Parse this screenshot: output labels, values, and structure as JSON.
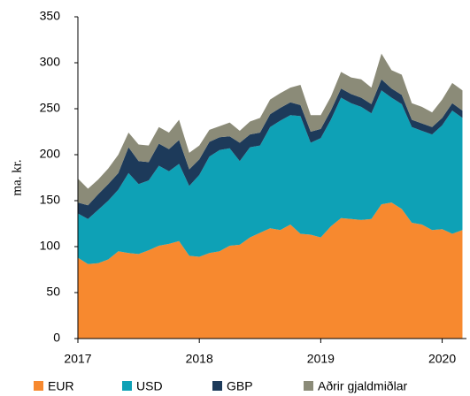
{
  "chart_data": {
    "type": "stacked_area",
    "y_label": "ma. kr.",
    "x": [
      2017,
      2017.083,
      2017.167,
      2017.25,
      2017.333,
      2017.417,
      2017.5,
      2017.583,
      2017.667,
      2017.75,
      2017.833,
      2017.917,
      2018,
      2018.083,
      2018.167,
      2018.25,
      2018.333,
      2018.417,
      2018.5,
      2018.583,
      2018.667,
      2018.75,
      2018.833,
      2018.917,
      2019,
      2019.083,
      2019.167,
      2019.25,
      2019.333,
      2019.417,
      2019.5,
      2019.583,
      2019.667,
      2019.75,
      2019.833,
      2019.917,
      2020,
      2020.083,
      2020.167
    ],
    "series": [
      {
        "name": "EUR",
        "color": "#f7892f",
        "values": [
          88,
          81,
          82,
          86,
          95,
          93,
          92,
          96,
          101,
          103,
          106,
          90,
          89,
          93,
          95,
          101,
          102,
          110,
          115,
          120,
          118,
          124,
          114,
          113,
          110,
          122,
          131,
          130,
          129,
          130,
          146,
          148,
          141,
          126,
          124,
          118,
          119,
          114,
          118
        ]
      },
      {
        "name": "USD",
        "color": "#0ea1b6",
        "values": [
          48,
          49,
          58,
          64,
          67,
          87,
          76,
          76,
          87,
          79,
          84,
          76,
          89,
          105,
          110,
          106,
          91,
          98,
          95,
          110,
          119,
          119,
          128,
          100,
          108,
          116,
          131,
          126,
          123,
          115,
          124,
          114,
          114,
          104,
          102,
          104,
          113,
          134,
          122
        ]
      },
      {
        "name": "GBP",
        "color": "#1d3a5a",
        "values": [
          12,
          15,
          17,
          18,
          18,
          28,
          25,
          20,
          24,
          24,
          26,
          18,
          17,
          16,
          14,
          13,
          20,
          14,
          14,
          14,
          14,
          14,
          12,
          12,
          10,
          10,
          10,
          10,
          10,
          10,
          12,
          10,
          10,
          8,
          8,
          8,
          8,
          8,
          8
        ]
      },
      {
        "name": "Aðrir gjaldmiðlar",
        "color": "#8b8b78",
        "values": [
          26,
          18,
          16,
          17,
          20,
          16,
          18,
          18,
          18,
          18,
          22,
          18,
          15,
          13,
          12,
          15,
          13,
          14,
          16,
          16,
          16,
          16,
          22,
          18,
          15,
          15,
          18,
          18,
          20,
          18,
          28,
          20,
          22,
          18,
          18,
          16,
          20,
          22,
          22
        ]
      }
    ],
    "xlim": [
      2017,
      2020.2
    ],
    "xticks": [
      2017,
      2018,
      2019,
      2020
    ],
    "ylim": [
      0,
      350
    ],
    "yticks": [
      0,
      50,
      100,
      150,
      200,
      250,
      300,
      350
    ],
    "legend": "bottom"
  }
}
